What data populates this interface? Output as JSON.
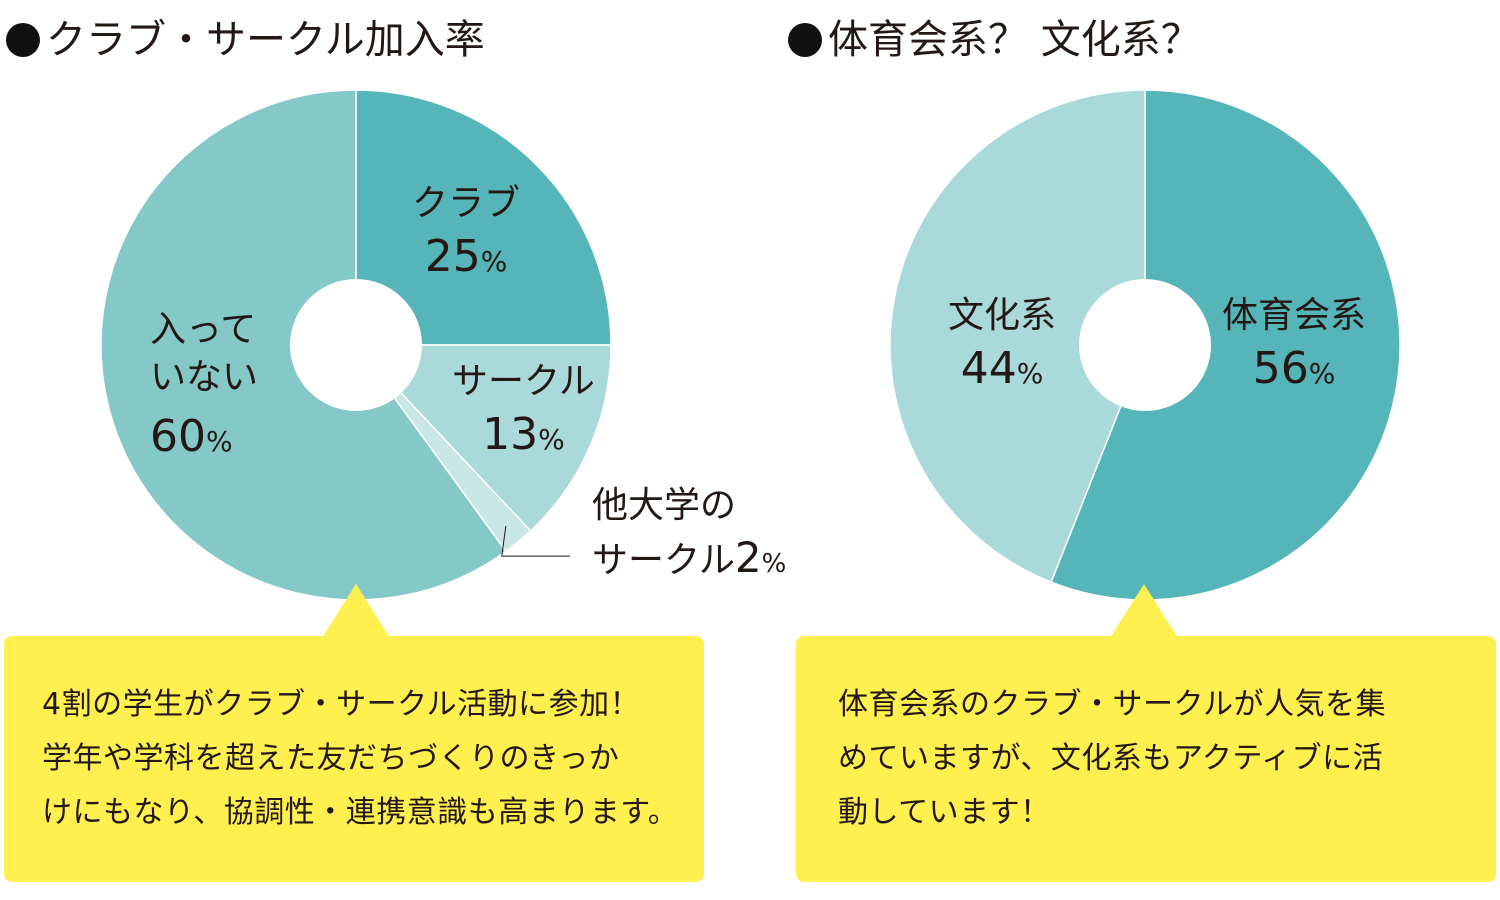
{
  "chart_data": [
    {
      "type": "pie",
      "title": "クラブ・サークル加入率",
      "unit": "%",
      "slices": [
        {
          "name": "クラブ",
          "value": 25,
          "color": "#55b5b8"
        },
        {
          "name": "サークル",
          "value": 13,
          "color": "#a9d9d8"
        },
        {
          "name": "他大学のサークル",
          "value": 2,
          "color": "#c8e6e5"
        },
        {
          "name": "入っていない",
          "value": 60,
          "color": "#84c9c7"
        }
      ]
    },
    {
      "type": "pie",
      "title": "体育会系？ 文化系？",
      "unit": "%",
      "slices": [
        {
          "name": "体育会系",
          "value": 56,
          "color": "#55b5b8"
        },
        {
          "name": "文化系",
          "value": 44,
          "color": "#a9d9d8"
        }
      ]
    }
  ],
  "left": {
    "title": "クラブ・サークル加入率",
    "labels": {
      "club_name": "クラブ",
      "club_value": "25",
      "circle_name": "サークル",
      "circle_value": "13",
      "other_line1": "他大学の",
      "other_line2": "サークル",
      "other_value": "2",
      "none_line1": "入って",
      "none_line2": "いない",
      "none_value": "60",
      "percent": "%"
    },
    "callout": [
      "4割の学生がクラブ・サークル活動に参加！",
      "学年や学科を超えた友だちづくりのきっか",
      "けにもなり、協調性・連携意識も高まります。"
    ]
  },
  "right": {
    "title": "体育会系？ 文化系？",
    "labels": {
      "sports_name": "体育会系",
      "sports_value": "56",
      "culture_name": "文化系",
      "culture_value": "44",
      "percent": "%"
    },
    "callout": [
      "体育会系のクラブ・サークルが人気を集",
      "めていますが、文化系もアクティブに活",
      "動しています！"
    ]
  },
  "colors": {
    "bullet": "#111111",
    "callout_bg": "#fff050",
    "text": "#231815"
  }
}
